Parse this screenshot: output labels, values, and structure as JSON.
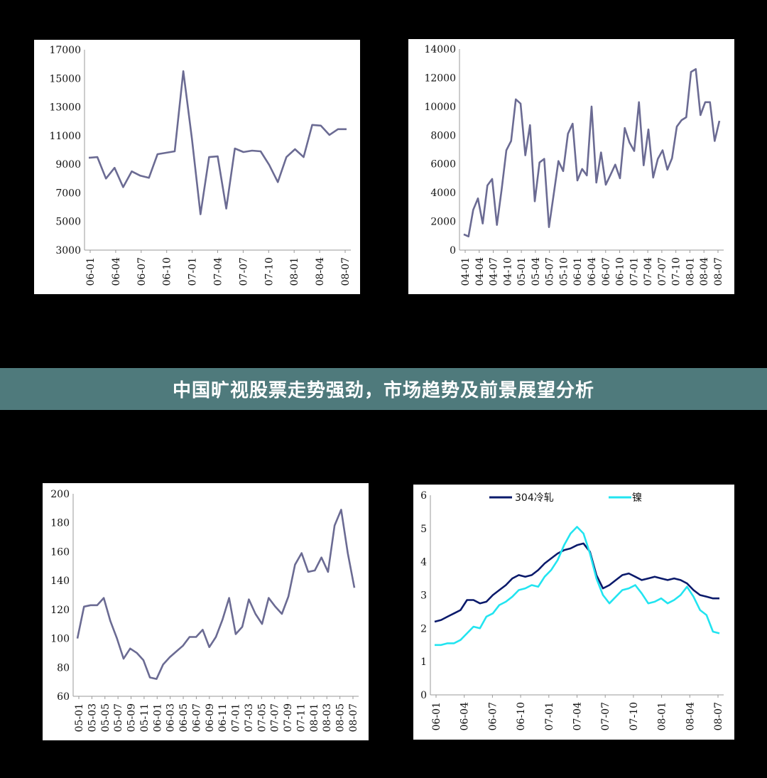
{
  "banner": {
    "title": "中国旷视股票走势强劲，市场趋势及前景展望分析"
  },
  "chart_data": [
    {
      "type": "line",
      "ylim": [
        3000,
        17000
      ],
      "yticks": [
        "17000",
        "15000",
        "13000",
        "11000",
        "9000",
        "7000",
        "5000",
        "3000"
      ],
      "xticks": [
        "06-01",
        "06-04",
        "06-07",
        "06-10",
        "07-01",
        "07-04",
        "07-07",
        "07-10",
        "08-01",
        "08-04",
        "08-07"
      ],
      "grid": false,
      "colors": {
        "line": "#6b6b93"
      },
      "series": [
        {
          "values": [
            9450,
            9500,
            8000,
            8750,
            7400,
            8500,
            8200,
            8050,
            9700,
            9800,
            9900,
            15500,
            10800,
            5500,
            9500,
            9550,
            5900,
            10100,
            9850,
            9950,
            9900,
            8950,
            7750,
            9500,
            10050,
            9500,
            11750,
            11700,
            11050,
            11450,
            11450
          ]
        }
      ]
    },
    {
      "type": "line",
      "ylim": [
        0,
        14000
      ],
      "yticks": [
        "14000",
        "12000",
        "10000",
        "8000",
        "6000",
        "4000",
        "2000",
        "0"
      ],
      "xticks": [
        "04-01",
        "04-04",
        "04-07",
        "04-10",
        "05-01",
        "05-04",
        "05-07",
        "05-10",
        "06-01",
        "06-04",
        "06-07",
        "06-10",
        "07-01",
        "07-04",
        "07-07",
        "07-10",
        "08-01",
        "08-04",
        "08-07"
      ],
      "grid": false,
      "colors": {
        "line": "#6b6b93"
      },
      "series": [
        {
          "values": [
            1100,
            950,
            2800,
            3600,
            1850,
            4500,
            4950,
            1750,
            4200,
            6950,
            7600,
            10500,
            10200,
            6600,
            8700,
            3400,
            6100,
            6350,
            1600,
            3900,
            6200,
            5500,
            8100,
            8800,
            4850,
            5650,
            5200,
            10000,
            4700,
            6800,
            4550,
            5250,
            5950,
            5000,
            8500,
            7500,
            6900,
            10300,
            5900,
            8400,
            5050,
            6350,
            6950,
            5600,
            6400,
            8600,
            9050,
            9250,
            12400,
            12600,
            9400,
            10300,
            10300,
            7600,
            9000
          ]
        }
      ]
    },
    {
      "type": "line",
      "ylim": [
        60,
        200
      ],
      "yticks": [
        "200",
        "180",
        "160",
        "140",
        "120",
        "100",
        "80",
        "60"
      ],
      "xticks": [
        "05-01",
        "05-03",
        "05-05",
        "05-07",
        "05-09",
        "05-11",
        "06-01",
        "06-03",
        "06-05",
        "06-07",
        "06-09",
        "06-11",
        "07-01",
        "07-03",
        "07-05",
        "07-07",
        "07-09",
        "07-11",
        "08-01",
        "08-03",
        "08-05",
        "08-07"
      ],
      "grid": false,
      "colors": {
        "line": "#6b6b93"
      },
      "series": [
        {
          "values": [
            100,
            122,
            123,
            123,
            128,
            112,
            100,
            86,
            93,
            90,
            85,
            73,
            72,
            82,
            87,
            91,
            95,
            101,
            101,
            106,
            94,
            101,
            113,
            128,
            103,
            108,
            127,
            117,
            110,
            128,
            122,
            117,
            129,
            151,
            159,
            146,
            147,
            156,
            146,
            178,
            189,
            159,
            135
          ]
        }
      ]
    },
    {
      "type": "line",
      "ylim": [
        0,
        6
      ],
      "yticks": [
        "6",
        "5",
        "4",
        "3",
        "2",
        "1",
        "0"
      ],
      "xticks": [
        "06-01",
        "06-04",
        "06-07",
        "06-10",
        "07-01",
        "07-04",
        "07-07",
        "07-10",
        "08-01",
        "08-04",
        "08-07"
      ],
      "legend_position": "top",
      "grid": false,
      "series": [
        {
          "name": "304冷轧",
          "color": "#0a1a6b",
          "values": [
            2.2,
            2.25,
            2.35,
            2.45,
            2.55,
            2.85,
            2.85,
            2.75,
            2.8,
            3.0,
            3.15,
            3.3,
            3.5,
            3.6,
            3.55,
            3.6,
            3.75,
            3.95,
            4.1,
            4.25,
            4.35,
            4.4,
            4.5,
            4.55,
            4.3,
            3.6,
            3.2,
            3.3,
            3.45,
            3.6,
            3.65,
            3.55,
            3.45,
            3.5,
            3.55,
            3.5,
            3.45,
            3.5,
            3.45,
            3.35,
            3.15,
            3.0,
            2.95,
            2.9,
            2.9
          ]
        },
        {
          "name": "镍",
          "color": "#22e4f0",
          "values": [
            1.5,
            1.5,
            1.55,
            1.55,
            1.65,
            1.85,
            2.05,
            2.0,
            2.35,
            2.45,
            2.7,
            2.8,
            2.95,
            3.15,
            3.2,
            3.3,
            3.25,
            3.55,
            3.75,
            4.05,
            4.5,
            4.85,
            5.05,
            4.85,
            4.25,
            3.5,
            3.0,
            2.75,
            2.95,
            3.15,
            3.2,
            3.3,
            3.05,
            2.75,
            2.8,
            2.9,
            2.75,
            2.85,
            3.0,
            3.25,
            2.95,
            2.55,
            2.4,
            1.9,
            1.85
          ]
        }
      ]
    }
  ]
}
